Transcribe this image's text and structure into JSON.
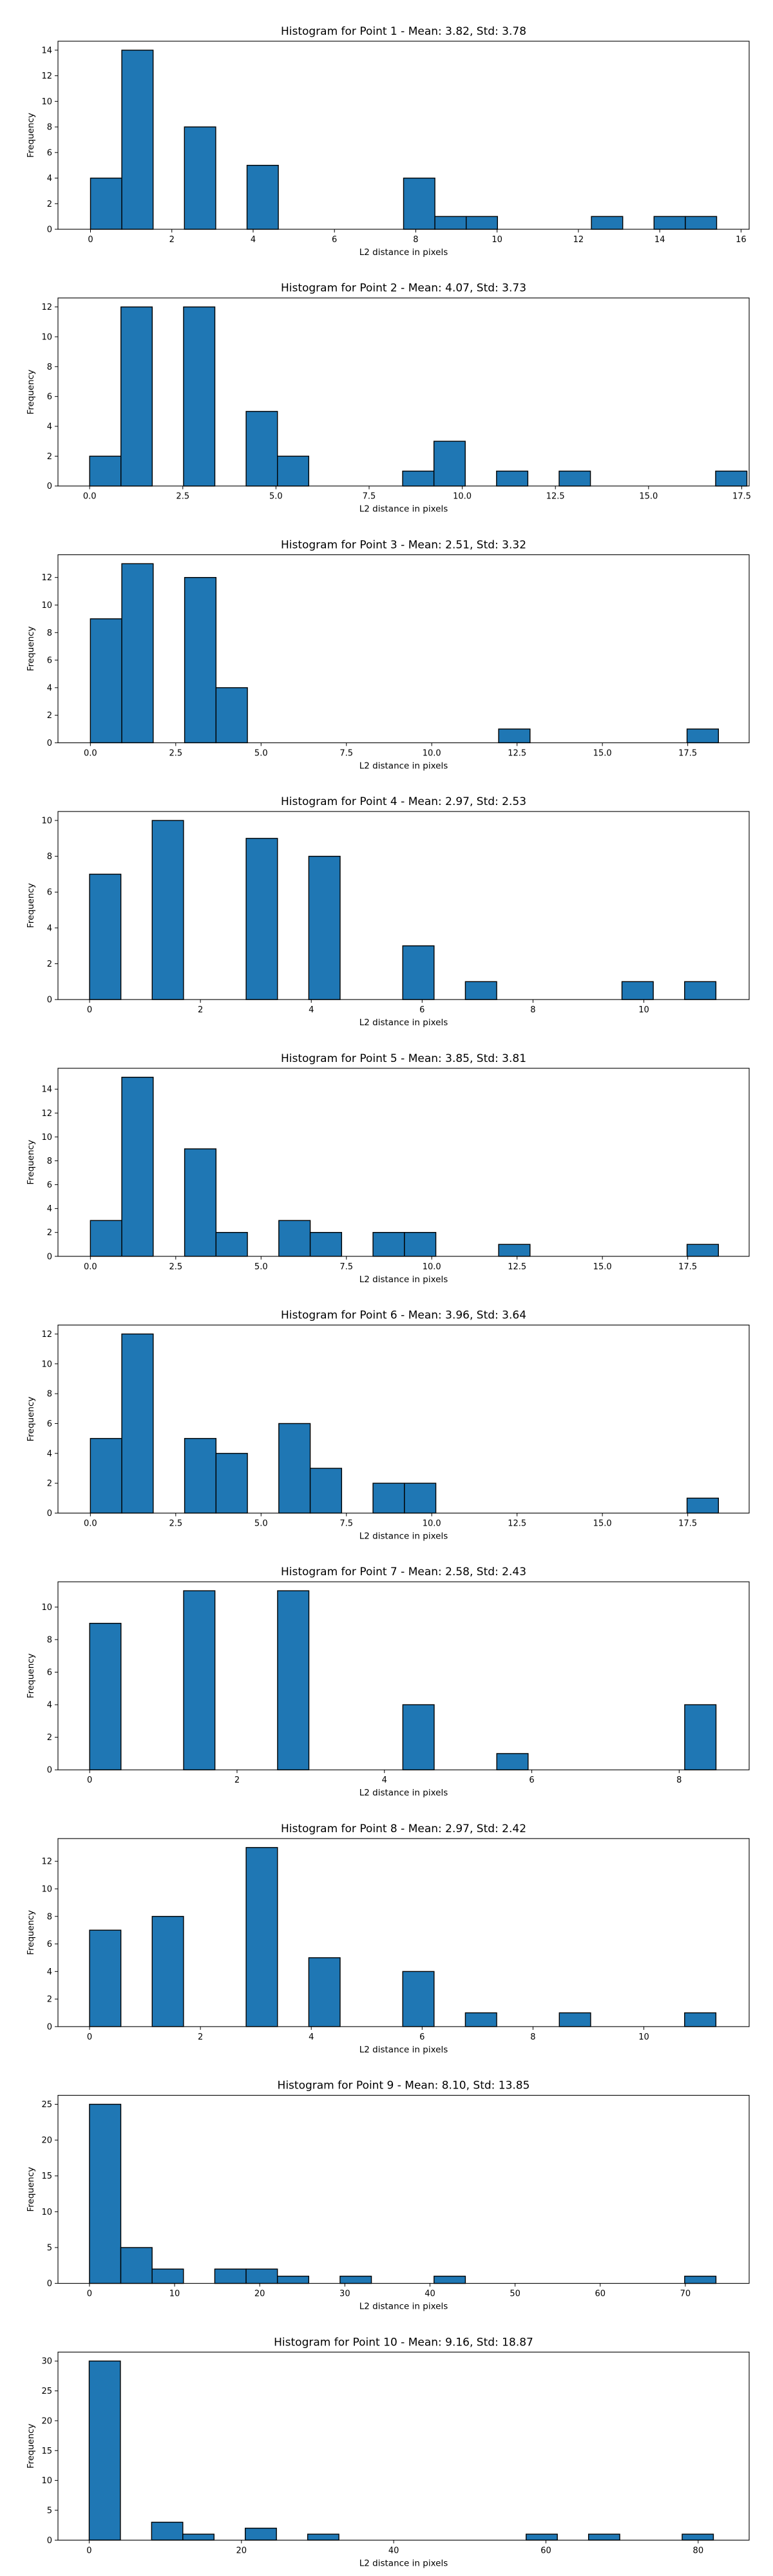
{
  "chart_data": [
    {
      "type": "bar",
      "title": "Histogram for Point 1 - Mean: 3.82, Std: 3.78",
      "xlabel": "L2 distance in pixels",
      "ylabel": "Frequency",
      "xlim": [
        -0.8,
        16.2
      ],
      "ylim": [
        0,
        14.7
      ],
      "xticks": [
        0,
        2,
        4,
        6,
        8,
        10,
        12,
        14,
        16
      ],
      "yticks": [
        0,
        2,
        4,
        6,
        8,
        10,
        12,
        14
      ],
      "bin_width": 0.77,
      "bins": [
        {
          "x0": 0.0,
          "count": 4
        },
        {
          "x0": 0.77,
          "count": 14
        },
        {
          "x0": 2.31,
          "count": 8
        },
        {
          "x0": 3.85,
          "count": 5
        },
        {
          "x0": 7.7,
          "count": 4
        },
        {
          "x0": 8.47,
          "count": 1
        },
        {
          "x0": 9.24,
          "count": 1
        },
        {
          "x0": 12.32,
          "count": 1
        },
        {
          "x0": 13.86,
          "count": 1
        },
        {
          "x0": 14.63,
          "count": 1
        }
      ]
    },
    {
      "type": "bar",
      "title": "Histogram for Point 2 - Mean: 4.07, Std: 3.73",
      "xlabel": "L2 distance in pixels",
      "ylabel": "Frequency",
      "xlim": [
        -0.85,
        17.7
      ],
      "ylim": [
        0,
        12.6
      ],
      "xticks": [
        0.0,
        2.5,
        5.0,
        7.5,
        10.0,
        12.5,
        15.0,
        17.5
      ],
      "xtick_labels": [
        "0.0",
        "2.5",
        "5.0",
        "7.5",
        "10.0",
        "12.5",
        "15.0",
        "17.5"
      ],
      "yticks": [
        0,
        2,
        4,
        6,
        8,
        10,
        12
      ],
      "bin_width": 0.84,
      "bins": [
        {
          "x0": 0.0,
          "count": 2
        },
        {
          "x0": 0.84,
          "count": 12
        },
        {
          "x0": 2.52,
          "count": 12
        },
        {
          "x0": 4.2,
          "count": 5
        },
        {
          "x0": 5.04,
          "count": 2
        },
        {
          "x0": 8.4,
          "count": 1
        },
        {
          "x0": 9.24,
          "count": 3
        },
        {
          "x0": 10.92,
          "count": 1
        },
        {
          "x0": 12.6,
          "count": 1
        },
        {
          "x0": 16.8,
          "count": 1
        }
      ]
    },
    {
      "type": "bar",
      "title": "Histogram for Point 3 - Mean: 2.51, Std: 3.32",
      "xlabel": "L2 distance in pixels",
      "ylabel": "Frequency",
      "xlim": [
        -0.95,
        19.3
      ],
      "ylim": [
        0,
        13.65
      ],
      "xticks": [
        0.0,
        2.5,
        5.0,
        7.5,
        10.0,
        12.5,
        15.0,
        17.5
      ],
      "xtick_labels": [
        "0.0",
        "2.5",
        "5.0",
        "7.5",
        "10.0",
        "12.5",
        "15.0",
        "17.5"
      ],
      "yticks": [
        0,
        2,
        4,
        6,
        8,
        10,
        12
      ],
      "bin_width": 0.92,
      "bins": [
        {
          "x0": 0.0,
          "count": 9
        },
        {
          "x0": 0.92,
          "count": 13
        },
        {
          "x0": 2.76,
          "count": 12
        },
        {
          "x0": 3.68,
          "count": 4
        },
        {
          "x0": 11.96,
          "count": 1
        },
        {
          "x0": 17.48,
          "count": 1
        }
      ]
    },
    {
      "type": "bar",
      "title": "Histogram for Point 4 - Mean: 2.97, Std: 2.53",
      "xlabel": "L2 distance in pixels",
      "ylabel": "Frequency",
      "xlim": [
        -0.57,
        11.9
      ],
      "ylim": [
        0,
        10.5
      ],
      "xticks": [
        0,
        2,
        4,
        6,
        8,
        10
      ],
      "yticks": [
        0,
        2,
        4,
        6,
        8,
        10
      ],
      "bin_width": 0.565,
      "bins": [
        {
          "x0": 0.0,
          "count": 7
        },
        {
          "x0": 1.13,
          "count": 10
        },
        {
          "x0": 2.825,
          "count": 9
        },
        {
          "x0": 3.955,
          "count": 8
        },
        {
          "x0": 5.65,
          "count": 3
        },
        {
          "x0": 6.78,
          "count": 1
        },
        {
          "x0": 9.605,
          "count": 1
        },
        {
          "x0": 10.735,
          "count": 1
        }
      ]
    },
    {
      "type": "bar",
      "title": "Histogram for Point 5 - Mean: 3.85, Std: 3.81",
      "xlabel": "L2 distance in pixels",
      "ylabel": "Frequency",
      "xlim": [
        -0.95,
        19.3
      ],
      "ylim": [
        0,
        15.75
      ],
      "xticks": [
        0.0,
        2.5,
        5.0,
        7.5,
        10.0,
        12.5,
        15.0,
        17.5
      ],
      "xtick_labels": [
        "0.0",
        "2.5",
        "5.0",
        "7.5",
        "10.0",
        "12.5",
        "15.0",
        "17.5"
      ],
      "yticks": [
        0,
        2,
        4,
        6,
        8,
        10,
        12,
        14
      ],
      "bin_width": 0.92,
      "bins": [
        {
          "x0": 0.0,
          "count": 3
        },
        {
          "x0": 0.92,
          "count": 15
        },
        {
          "x0": 2.76,
          "count": 9
        },
        {
          "x0": 3.68,
          "count": 2
        },
        {
          "x0": 5.52,
          "count": 3
        },
        {
          "x0": 6.44,
          "count": 2
        },
        {
          "x0": 8.28,
          "count": 2
        },
        {
          "x0": 9.2,
          "count": 2
        },
        {
          "x0": 11.96,
          "count": 1
        },
        {
          "x0": 17.48,
          "count": 1
        }
      ]
    },
    {
      "type": "bar",
      "title": "Histogram for Point 6 - Mean: 3.96, Std: 3.64",
      "xlabel": "L2 distance in pixels",
      "ylabel": "Frequency",
      "xlim": [
        -0.95,
        19.3
      ],
      "ylim": [
        0,
        12.6
      ],
      "xticks": [
        0.0,
        2.5,
        5.0,
        7.5,
        10.0,
        12.5,
        15.0,
        17.5
      ],
      "xtick_labels": [
        "0.0",
        "2.5",
        "5.0",
        "7.5",
        "10.0",
        "12.5",
        "15.0",
        "17.5"
      ],
      "yticks": [
        0,
        2,
        4,
        6,
        8,
        10,
        12
      ],
      "bin_width": 0.92,
      "bins": [
        {
          "x0": 0.0,
          "count": 5
        },
        {
          "x0": 0.92,
          "count": 12
        },
        {
          "x0": 2.76,
          "count": 5
        },
        {
          "x0": 3.68,
          "count": 4
        },
        {
          "x0": 5.52,
          "count": 6
        },
        {
          "x0": 6.44,
          "count": 3
        },
        {
          "x0": 8.28,
          "count": 2
        },
        {
          "x0": 9.2,
          "count": 2
        },
        {
          "x0": 17.48,
          "count": 1
        }
      ]
    },
    {
      "type": "bar",
      "title": "Histogram for Point 7 - Mean: 2.58, Std: 2.43",
      "xlabel": "L2 distance in pixels",
      "ylabel": "Frequency",
      "xlim": [
        -0.43,
        8.95
      ],
      "ylim": [
        0,
        11.55
      ],
      "xticks": [
        0,
        2,
        4,
        6,
        8
      ],
      "yticks": [
        0,
        2,
        4,
        6,
        8,
        10
      ],
      "bin_width": 0.425,
      "bins": [
        {
          "x0": 0.0,
          "count": 9
        },
        {
          "x0": 1.275,
          "count": 11
        },
        {
          "x0": 2.55,
          "count": 11
        },
        {
          "x0": 4.25,
          "count": 4
        },
        {
          "x0": 5.525,
          "count": 1
        },
        {
          "x0": 8.075,
          "count": 4
        }
      ]
    },
    {
      "type": "bar",
      "title": "Histogram for Point 8 - Mean: 2.97, Std: 2.42",
      "xlabel": "L2 distance in pixels",
      "ylabel": "Frequency",
      "xlim": [
        -0.57,
        11.9
      ],
      "ylim": [
        0,
        13.65
      ],
      "xticks": [
        0,
        2,
        4,
        6,
        8,
        10
      ],
      "yticks": [
        0,
        2,
        4,
        6,
        8,
        10,
        12
      ],
      "bin_width": 0.565,
      "bins": [
        {
          "x0": 0.0,
          "count": 7
        },
        {
          "x0": 1.13,
          "count": 8
        },
        {
          "x0": 2.825,
          "count": 13
        },
        {
          "x0": 3.955,
          "count": 5
        },
        {
          "x0": 5.65,
          "count": 4
        },
        {
          "x0": 6.78,
          "count": 1
        },
        {
          "x0": 8.475,
          "count": 1
        },
        {
          "x0": 10.735,
          "count": 1
        }
      ]
    },
    {
      "type": "bar",
      "title": "Histogram for Point 9 - Mean: 8.10, Std: 13.85",
      "xlabel": "L2 distance in pixels",
      "ylabel": "Frequency",
      "xlim": [
        -3.7,
        77.5
      ],
      "ylim": [
        0,
        26.25
      ],
      "xticks": [
        0,
        10,
        20,
        30,
        40,
        50,
        60,
        70
      ],
      "yticks": [
        0,
        5,
        10,
        15,
        20,
        25
      ],
      "bin_width": 3.68,
      "bins": [
        {
          "x0": 0.0,
          "count": 25
        },
        {
          "x0": 3.68,
          "count": 5
        },
        {
          "x0": 7.36,
          "count": 2
        },
        {
          "x0": 14.72,
          "count": 2
        },
        {
          "x0": 18.4,
          "count": 2
        },
        {
          "x0": 22.08,
          "count": 1
        },
        {
          "x0": 29.44,
          "count": 1
        },
        {
          "x0": 40.48,
          "count": 1
        },
        {
          "x0": 69.92,
          "count": 1
        }
      ]
    },
    {
      "type": "bar",
      "title": "Histogram for Point 10 - Mean: 9.16, Std: 18.87",
      "xlabel": "L2 distance in pixels",
      "ylabel": "Frequency",
      "xlim": [
        -4.1,
        86.7
      ],
      "ylim": [
        0,
        31.5
      ],
      "xticks": [
        0,
        20,
        40,
        60,
        80
      ],
      "yticks": [
        0,
        5,
        10,
        15,
        20,
        25,
        30
      ],
      "bin_width": 4.1,
      "bins": [
        {
          "x0": 0.0,
          "count": 30
        },
        {
          "x0": 8.2,
          "count": 3
        },
        {
          "x0": 12.3,
          "count": 1
        },
        {
          "x0": 20.5,
          "count": 2
        },
        {
          "x0": 28.7,
          "count": 1
        },
        {
          "x0": 57.4,
          "count": 1
        },
        {
          "x0": 65.6,
          "count": 1
        },
        {
          "x0": 77.9,
          "count": 1
        }
      ]
    }
  ]
}
